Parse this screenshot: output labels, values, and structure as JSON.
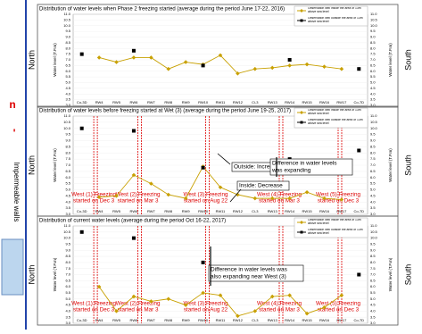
{
  "left_strip": {
    "texts": [
      "n",
      "'",
      "Impermeable walls"
    ]
  },
  "side_labels": {
    "left": "North",
    "right": "South"
  },
  "chart_data": [
    {
      "type": "line",
      "title": "Distribution of water levels when Phase 2 freezing started (average during the period June 17-22, 2016)",
      "ylabel": "Water level (T.P.m)",
      "categories": [
        "Co-3D",
        "RW4",
        "RW5",
        "RW6",
        "RW7",
        "RW8",
        "RW9",
        "RW10",
        "RW11",
        "RW12",
        "Ci-3",
        "RW13",
        "RW14",
        "RW15",
        "RW16",
        "RW17",
        "Co-7D"
      ],
      "series": [
        {
          "name": "Observation well inside the area of 13m above sea level",
          "color": "#c8a000",
          "values": [
            null,
            7.2,
            6.8,
            7.2,
            7.2,
            6.2,
            6.8,
            6.6,
            7.4,
            5.8,
            6.2,
            6.3,
            6.5,
            6.6,
            6.4,
            6.2,
            null
          ]
        },
        {
          "name": "Observation well outside the area of 13m above sea level",
          "color": "#000000",
          "values": [
            7.5,
            null,
            null,
            7.8,
            null,
            null,
            null,
            6.5,
            null,
            null,
            null,
            null,
            7.0,
            null,
            null,
            null,
            6.2
          ]
        }
      ],
      "ylim": [
        3,
        11
      ],
      "yticks": [
        {
          "value": 3,
          "label": "3.0"
        },
        {
          "value": 3.5,
          "label": "3.5"
        },
        {
          "value": 4,
          "label": "4.0"
        },
        {
          "value": 4.5,
          "label": "4.5"
        },
        {
          "value": 5,
          "label": "5.0"
        },
        {
          "value": 5.5,
          "label": "5.5"
        },
        {
          "value": 6,
          "label": "6.0"
        },
        {
          "value": 6.5,
          "label": "6.5"
        },
        {
          "value": 7,
          "label": "7.0"
        },
        {
          "value": 7.5,
          "label": "7.5"
        },
        {
          "value": 8,
          "label": "8.0"
        },
        {
          "value": 8.5,
          "label": "8.5"
        },
        {
          "value": 9,
          "label": "9.0"
        },
        {
          "value": 9.5,
          "label": "9.5"
        },
        {
          "value": 10,
          "label": "10.0"
        },
        {
          "value": 10.5,
          "label": "10.5"
        },
        {
          "value": 11,
          "label": "11.0"
        }
      ],
      "annotations": [],
      "walls": []
    },
    {
      "type": "line",
      "title": "Distribution of water levels before freezing started at Wet (3) (average during the period June 19-25, 2017)",
      "ylabel": "Water level (T.P.m)",
      "categories": [
        "Co-3D",
        "RW4",
        "RW5",
        "RW6",
        "RW7",
        "RW8",
        "RW9",
        "RW10",
        "RW11",
        "RW12",
        "Ci-3",
        "RW13",
        "RW14",
        "RW15",
        "RW16",
        "RW17",
        "Co-7D"
      ],
      "series": [
        {
          "name": "Observation well inside the area of 13m above sea level",
          "color": "#c8a000",
          "values": [
            null,
            4.4,
            4.5,
            6.2,
            5.5,
            4.6,
            4.3,
            6.9,
            5.2,
            4.6,
            4.3,
            4.3,
            4.3,
            4.8,
            4.3,
            4.2,
            null
          ]
        },
        {
          "name": "Observation well outside the area of 13m above sea level",
          "color": "#000000",
          "values": [
            10.0,
            null,
            null,
            9.8,
            null,
            null,
            null,
            6.8,
            null,
            null,
            null,
            null,
            7.5,
            null,
            null,
            null,
            8.2
          ]
        }
      ],
      "ylim": [
        3,
        11
      ],
      "yticks": [
        {
          "value": 3,
          "label": "3.0"
        },
        {
          "value": 3.5,
          "label": "3.5"
        },
        {
          "value": 4,
          "label": "4.0"
        },
        {
          "value": 4.5,
          "label": "4.5"
        },
        {
          "value": 5,
          "label": "5.0"
        },
        {
          "value": 5.5,
          "label": "5.5"
        },
        {
          "value": 6,
          "label": "6.0"
        },
        {
          "value": 6.5,
          "label": "6.5"
        },
        {
          "value": 7,
          "label": "7.0"
        },
        {
          "value": 7.5,
          "label": "7.5"
        },
        {
          "value": 8,
          "label": "8.0"
        },
        {
          "value": 8.5,
          "label": "8.5"
        },
        {
          "value": 9,
          "label": "9.0"
        },
        {
          "value": 9.5,
          "label": "9.5"
        },
        {
          "value": 10,
          "label": "10.0"
        },
        {
          "value": 10.5,
          "label": "10.5"
        },
        {
          "value": 11,
          "label": "11.0"
        }
      ],
      "annotations": [
        [
          "Outside: Increase"
        ],
        [
          "Inside: Decrease"
        ],
        [
          "Difference in water levels",
          "was expanding"
        ]
      ],
      "walls": [
        [
          "West (1) Freezing",
          "started on Dec 3"
        ],
        [
          "West (2) Freezing",
          "started on Mar 3"
        ],
        [
          "West (3) Freezing",
          "started on Aug 22"
        ],
        [
          "West (4) Freezing",
          "started on Mar 3"
        ],
        [
          "West (5) Freezing",
          "started on Dec 3"
        ]
      ]
    },
    {
      "type": "line",
      "title": "Distribution of current water levels (average during the period Oct 16-22, 2017)",
      "ylabel": "Water level (T.P.m)",
      "categories": [
        "Co-3D",
        "RW4",
        "RW5",
        "RW6",
        "RW7",
        "RW8",
        "RW9",
        "RW10",
        "RW11",
        "RW12",
        "Ci-3",
        "RW13",
        "RW14",
        "RW15",
        "RW16",
        "RW17",
        "Co-7D"
      ],
      "series": [
        {
          "name": "Observation well inside the area of 13m above sea level",
          "color": "#c8a000",
          "values": [
            null,
            6.0,
            4.0,
            5.2,
            4.8,
            5.0,
            4.5,
            5.5,
            5.3,
            3.6,
            4.0,
            5.2,
            5.3,
            3.8,
            4.3,
            5.3,
            null
          ]
        },
        {
          "name": "Observation well outside the area of 13m above sea level",
          "color": "#000000",
          "values": [
            10.5,
            null,
            null,
            10.0,
            null,
            null,
            null,
            8.0,
            null,
            null,
            null,
            null,
            7.5,
            null,
            null,
            null,
            7.0
          ]
        }
      ],
      "ylim": [
        3,
        11
      ],
      "yticks": [
        {
          "value": 3,
          "label": "3.0"
        },
        {
          "value": 3.5,
          "label": "3.5"
        },
        {
          "value": 4,
          "label": "4.0"
        },
        {
          "value": 4.5,
          "label": "4.5"
        },
        {
          "value": 5,
          "label": "5.0"
        },
        {
          "value": 5.5,
          "label": "5.5"
        },
        {
          "value": 6,
          "label": "6.0"
        },
        {
          "value": 6.5,
          "label": "6.5"
        },
        {
          "value": 7,
          "label": "7.0"
        },
        {
          "value": 7.5,
          "label": "7.5"
        },
        {
          "value": 8,
          "label": "8.0"
        },
        {
          "value": 8.5,
          "label": "8.5"
        },
        {
          "value": 9,
          "label": "9.0"
        },
        {
          "value": 9.5,
          "label": "9.5"
        },
        {
          "value": 10,
          "label": "10.0"
        },
        {
          "value": 10.5,
          "label": "10.5"
        },
        {
          "value": 11,
          "label": "11.0"
        }
      ],
      "annotations": [
        [
          "Difference in water levels was",
          "also expanding near West (3)"
        ]
      ],
      "walls": [
        [
          "West (1) Freezing",
          "started on Dec 3"
        ],
        [
          "West (2) Freezing",
          "started on Mar 3"
        ],
        [
          "West (3) Freezing",
          "started on Aug 22"
        ],
        [
          "West (4) Freezing",
          "started on Mar 3"
        ],
        [
          "West (5) Freezing",
          "started on Dec 3"
        ]
      ]
    }
  ]
}
